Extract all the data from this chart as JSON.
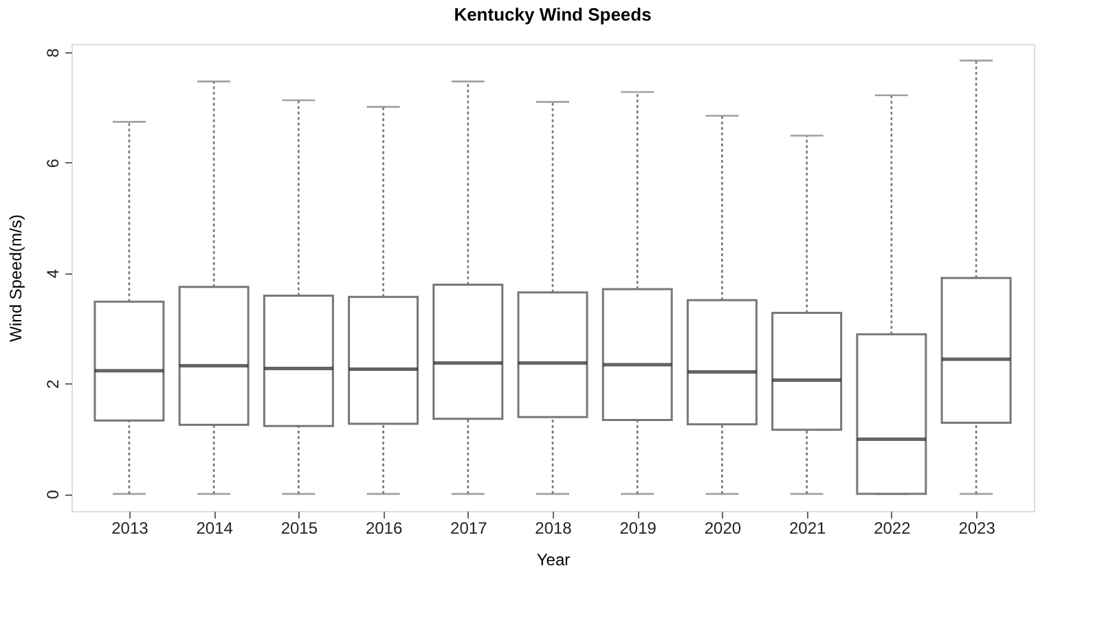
{
  "chart_data": {
    "type": "box",
    "title": "Kentucky Wind Speeds",
    "xlabel": "Year",
    "ylabel": "Wind Speed(m/s)",
    "categories": [
      "2013",
      "2014",
      "2015",
      "2016",
      "2017",
      "2018",
      "2019",
      "2020",
      "2021",
      "2022",
      "2023"
    ],
    "boxes": [
      {
        "low": 0,
        "q1": 1.33,
        "median": 2.23,
        "q3": 3.48,
        "high": 6.74
      },
      {
        "low": 0,
        "q1": 1.25,
        "median": 2.32,
        "q3": 3.75,
        "high": 7.47
      },
      {
        "low": 0,
        "q1": 1.23,
        "median": 2.27,
        "q3": 3.59,
        "high": 7.13
      },
      {
        "low": 0,
        "q1": 1.27,
        "median": 2.26,
        "q3": 3.57,
        "high": 7.01
      },
      {
        "low": 0,
        "q1": 1.36,
        "median": 2.37,
        "q3": 3.79,
        "high": 7.47
      },
      {
        "low": 0,
        "q1": 1.39,
        "median": 2.37,
        "q3": 3.65,
        "high": 7.1
      },
      {
        "low": 0,
        "q1": 1.34,
        "median": 2.34,
        "q3": 3.71,
        "high": 7.28
      },
      {
        "low": 0,
        "q1": 1.26,
        "median": 2.21,
        "q3": 3.51,
        "high": 6.85
      },
      {
        "low": 0,
        "q1": 1.16,
        "median": 2.06,
        "q3": 3.28,
        "high": 6.49
      },
      {
        "low": 0,
        "q1": 0,
        "median": 0.99,
        "q3": 2.89,
        "high": 7.22
      },
      {
        "low": 0,
        "q1": 1.29,
        "median": 2.44,
        "q3": 3.91,
        "high": 7.85
      }
    ],
    "ylim": [
      -0.31,
      8.15
    ],
    "yticks": [
      0,
      2,
      4,
      6,
      8
    ],
    "grid": false,
    "line_style": "dotted"
  }
}
